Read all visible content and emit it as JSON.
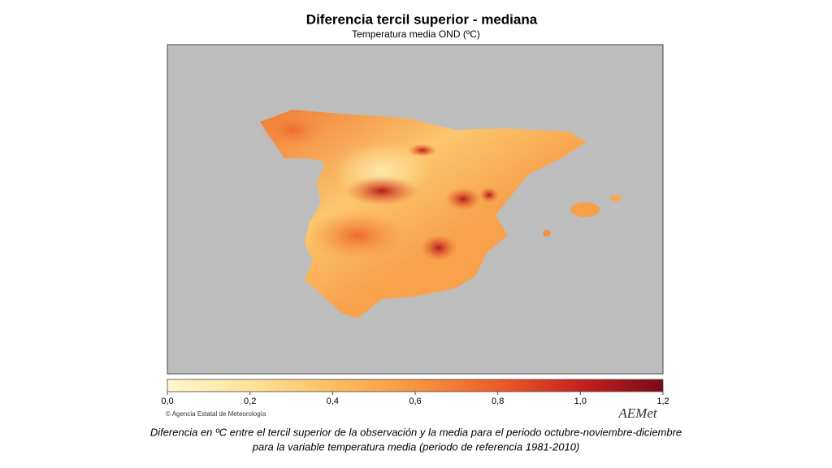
{
  "header": {
    "title": "Diferencia tercil superior - mediana",
    "subtitle": "Temperatura media OND (ºC)"
  },
  "colorbar": {
    "lim": [
      0,
      1.2
    ],
    "ticks": [
      {
        "value": 0,
        "label": "0,0"
      },
      {
        "value": 0.2,
        "label": "0,2"
      },
      {
        "value": 0.4,
        "label": "0,4"
      },
      {
        "value": 0.6,
        "label": "0,6"
      },
      {
        "value": 0.8,
        "label": "0,8"
      },
      {
        "value": 1.0,
        "label": "1,0"
      },
      {
        "value": 1.2,
        "label": "1,2"
      }
    ],
    "colors": [
      "#fff8d0",
      "#fde39a",
      "#fbbf63",
      "#f89440",
      "#ec5d27",
      "#c6221d",
      "#7a0a18"
    ]
  },
  "credit": "Agencia Estatal de Meteorología",
  "logo": "AEMet",
  "caption": [
    "Diferencia en ºC entre el tercil superior de la observación y la media para el periodo octubre-noviembre-diciembre",
    "para la variable temperatura media (periodo de referencia 1981-2010)"
  ]
}
